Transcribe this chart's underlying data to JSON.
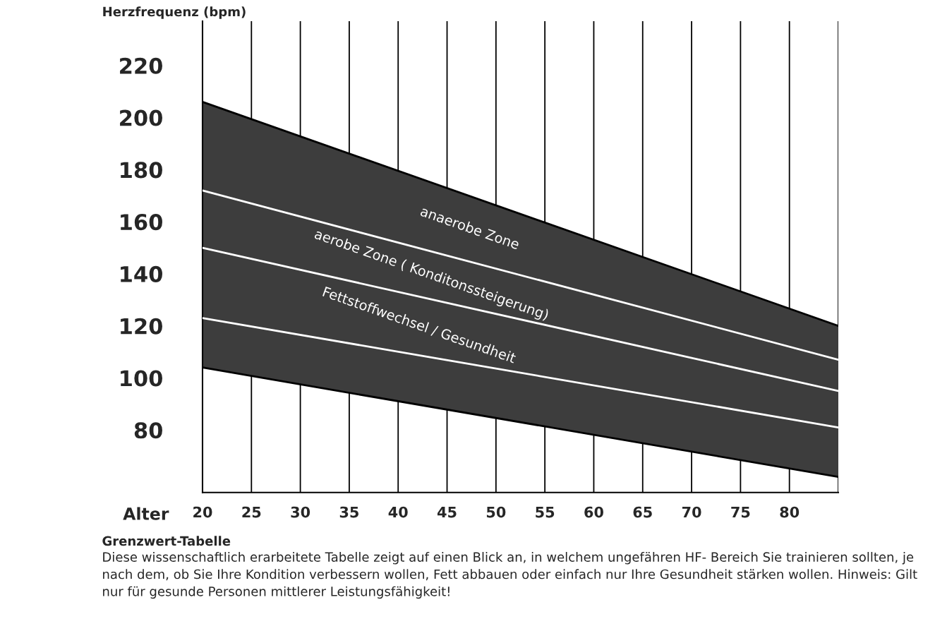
{
  "chart_data": {
    "type": "line",
    "title": "Grenzwert-Tabelle",
    "xlabel": "Alter",
    "ylabel": "Herzfrequenz (bpm)",
    "x": [
      20,
      85
    ],
    "xlim": [
      20,
      85
    ],
    "ylim": [
      56,
      237
    ],
    "xticks": [
      20,
      25,
      30,
      35,
      40,
      45,
      50,
      55,
      60,
      65,
      70,
      75,
      80,
      {
        "value": 85,
        "label": null
      }
    ],
    "yticks": [
      80,
      100,
      120,
      140,
      160,
      180,
      200,
      220
    ],
    "grid": "x",
    "series": [
      {
        "type": "area",
        "color": "#3d3d3d",
        "values": [
          206,
          120
        ]
      },
      {
        "color": "#ffffff",
        "values": [
          172,
          107
        ]
      },
      {
        "color": "#ffffff",
        "values": [
          150,
          95
        ]
      },
      {
        "color": "#ffffff",
        "values": [
          123,
          81
        ]
      },
      {
        "color": "#000000",
        "values": [
          104,
          62
        ]
      }
    ],
    "annotations": [
      "anaerobe Zone",
      "aerobe Zone ( Konditonssteigerung)",
      "Fettstoffwechsel / Gesundheit",
      "Diese wissenschaftlich erarbeitete Tabelle zeigt auf einen Blick an, in welchem ungefähren HF- Bereich Sie trainieren sollten, je nach dem, ob Sie Ihre Kondition verbessern wollen, Fett abbauen oder einfach nur Ihre Gesundheit stärken wollen. Hinweis: Gilt nur für gesunde Personen mittlerer Leistungsfähigkeit!"
    ]
  }
}
